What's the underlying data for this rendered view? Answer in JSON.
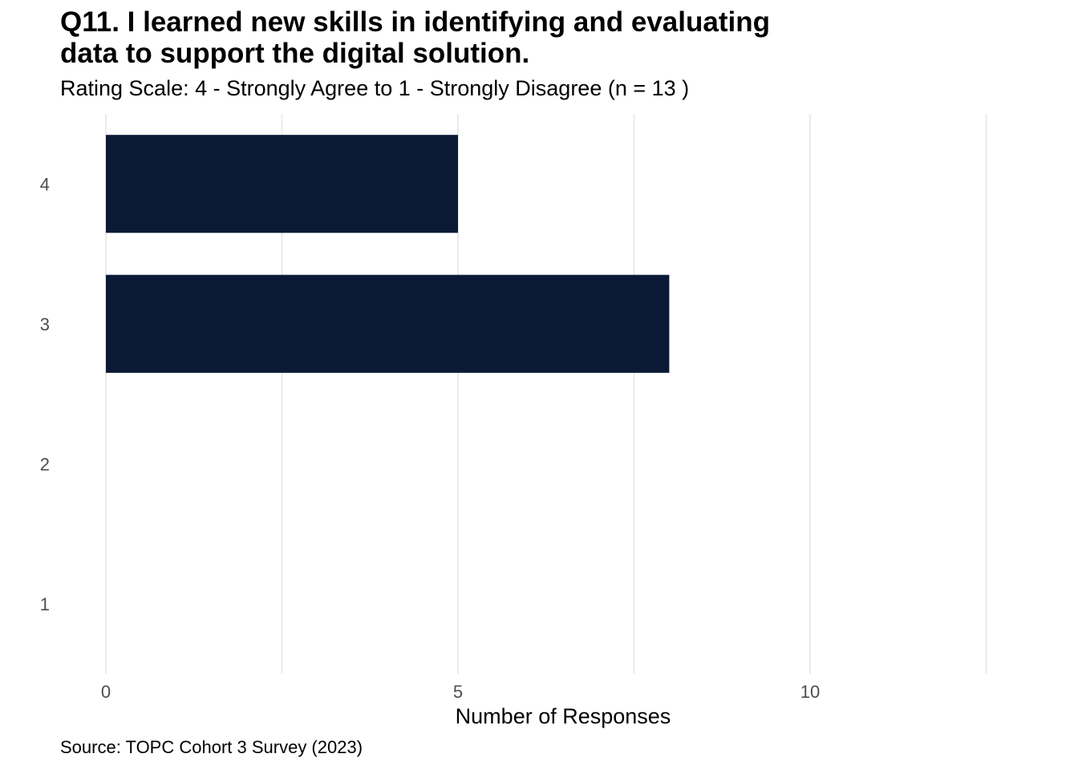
{
  "chart_data": {
    "type": "bar",
    "orientation": "horizontal",
    "title": [
      "Q11. I learned new skills in identifying and evaluating",
      "data to support the digital solution."
    ],
    "subtitle": "Rating Scale: 4 - Strongly Agree to 1 - Strongly Disagree (n = 13 )",
    "caption": "Source: TOPC Cohort 3 Survey (2023)",
    "xlabel": "Number of Responses",
    "ylabel": "",
    "categories": [
      "4",
      "3",
      "2",
      "1"
    ],
    "values": [
      5,
      8,
      0,
      0
    ],
    "xlim": [
      0,
      12.6
    ],
    "xticks": [
      0,
      5,
      10
    ],
    "bar_color": "#0a1a36",
    "grid": true,
    "legend": "none"
  }
}
